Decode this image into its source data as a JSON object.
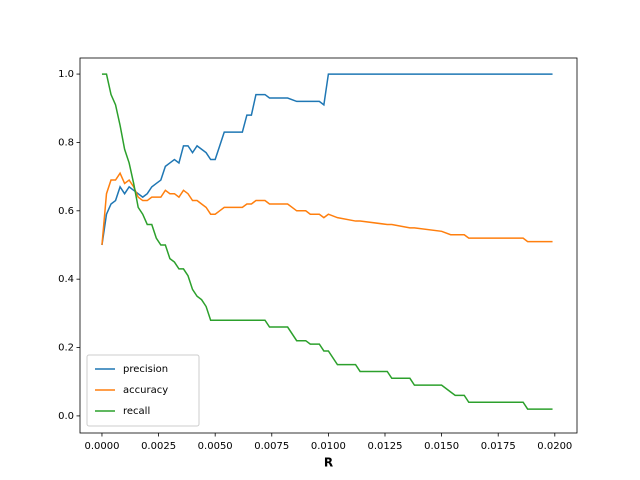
{
  "chart_data": {
    "type": "line",
    "xlabel": "R",
    "x": [
      0,
      0.0002,
      0.0004,
      0.0006,
      0.0008,
      0.001,
      0.0012,
      0.0014,
      0.0016,
      0.0018,
      0.002,
      0.0022,
      0.0024,
      0.0026,
      0.0028,
      0.003,
      0.0032,
      0.0034,
      0.0036,
      0.0038,
      0.004,
      0.0042,
      0.0044,
      0.0046,
      0.0048,
      0.005,
      0.0052,
      0.0054,
      0.006,
      0.0062,
      0.0064,
      0.0066,
      0.0068,
      0.0072,
      0.0074,
      0.008,
      0.0082,
      0.0086,
      0.009,
      0.0092,
      0.0096,
      0.0098,
      0.01,
      0.0104,
      0.0112,
      0.0114,
      0.0126,
      0.0128,
      0.0136,
      0.0138,
      0.015,
      0.0154,
      0.0156,
      0.016,
      0.0162,
      0.0186,
      0.0188,
      0.0199
    ],
    "series": [
      {
        "name": "precision",
        "color": "#1f77b4",
        "values": [
          0.5,
          0.59,
          0.62,
          0.63,
          0.67,
          0.65,
          0.67,
          0.66,
          0.65,
          0.64,
          0.65,
          0.67,
          0.68,
          0.69,
          0.73,
          0.74,
          0.75,
          0.74,
          0.79,
          0.79,
          0.77,
          0.79,
          0.78,
          0.77,
          0.75,
          0.75,
          0.79,
          0.83,
          0.83,
          0.83,
          0.88,
          0.88,
          0.94,
          0.94,
          0.93,
          0.93,
          0.93,
          0.92,
          0.92,
          0.92,
          0.92,
          0.91,
          1.0,
          1.0,
          1.0,
          1.0,
          1.0,
          1.0,
          1.0,
          1.0,
          1.0,
          1.0,
          1.0,
          1.0,
          1.0,
          1.0,
          1.0,
          1.0
        ]
      },
      {
        "name": "accuracy",
        "color": "#ff7f0e",
        "values": [
          0.5,
          0.65,
          0.69,
          0.69,
          0.71,
          0.68,
          0.69,
          0.67,
          0.64,
          0.63,
          0.63,
          0.64,
          0.64,
          0.64,
          0.66,
          0.65,
          0.65,
          0.64,
          0.66,
          0.65,
          0.63,
          0.63,
          0.62,
          0.61,
          0.59,
          0.59,
          0.6,
          0.61,
          0.61,
          0.61,
          0.62,
          0.62,
          0.63,
          0.63,
          0.62,
          0.62,
          0.62,
          0.6,
          0.6,
          0.59,
          0.59,
          0.58,
          0.59,
          0.58,
          0.57,
          0.57,
          0.56,
          0.56,
          0.55,
          0.55,
          0.54,
          0.53,
          0.53,
          0.53,
          0.52,
          0.52,
          0.51,
          0.51
        ]
      },
      {
        "name": "recall",
        "color": "#2ca02c",
        "values": [
          1.0,
          1.0,
          0.94,
          0.91,
          0.85,
          0.78,
          0.74,
          0.68,
          0.61,
          0.59,
          0.56,
          0.56,
          0.52,
          0.5,
          0.5,
          0.46,
          0.45,
          0.43,
          0.43,
          0.41,
          0.37,
          0.35,
          0.34,
          0.32,
          0.28,
          0.28,
          0.28,
          0.28,
          0.28,
          0.28,
          0.28,
          0.28,
          0.28,
          0.28,
          0.26,
          0.26,
          0.26,
          0.22,
          0.22,
          0.21,
          0.21,
          0.19,
          0.19,
          0.15,
          0.15,
          0.13,
          0.13,
          0.11,
          0.11,
          0.09,
          0.09,
          0.07,
          0.06,
          0.06,
          0.04,
          0.04,
          0.02,
          0.02
        ]
      }
    ],
    "xlim": [
      -0.00097,
      0.02098
    ],
    "ylim": [
      -0.05,
      1.047
    ],
    "xticks": [
      {
        "value": 0,
        "label": "0.0000"
      },
      {
        "value": 0.0025,
        "label": "0.0025"
      },
      {
        "value": 0.005,
        "label": "0.0050"
      },
      {
        "value": 0.0075,
        "label": "0.0075"
      },
      {
        "value": 0.01,
        "label": "0.0100"
      },
      {
        "value": 0.0125,
        "label": "0.0125"
      },
      {
        "value": 0.015,
        "label": "0.0150"
      },
      {
        "value": 0.0175,
        "label": "0.0175"
      },
      {
        "value": 0.02,
        "label": "0.0200"
      }
    ],
    "yticks": [
      {
        "value": 0,
        "label": "0.0"
      },
      {
        "value": 0.2,
        "label": "0.2"
      },
      {
        "value": 0.4,
        "label": "0.4"
      },
      {
        "value": 0.6,
        "label": "0.6"
      },
      {
        "value": 0.8,
        "label": "0.8"
      },
      {
        "value": 1.0,
        "label": "1.0"
      }
    ],
    "legend": "lower left",
    "grid": false
  }
}
